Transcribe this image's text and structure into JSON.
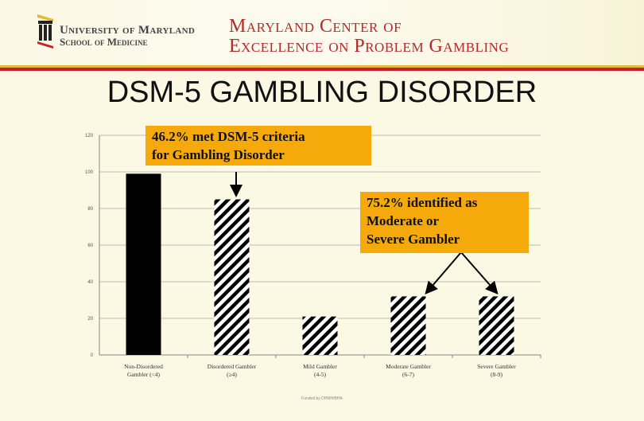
{
  "header": {
    "logo_line1": "University of Maryland",
    "logo_line2": "School of Medicine",
    "center_line1": "Maryland Center of",
    "center_line2": "Excellence on Problem Gambling"
  },
  "title": "DSM-5 GAMBLING DISORDER",
  "callouts": {
    "first": [
      "46.2% met DSM-5 criteria",
      "for Gambling  Disorder"
    ],
    "second": [
      "75.2% identified  as",
      "Moderate   or",
      "Severe Gambler"
    ]
  },
  "footer": "Funded by DHMH/BHA",
  "chart_data": {
    "type": "bar",
    "title": "",
    "xlabel": "",
    "ylabel": "",
    "ylim": [
      0,
      120
    ],
    "yticks": [
      0,
      20,
      40,
      60,
      80,
      100,
      120
    ],
    "categories": [
      [
        "Non-Disordered",
        "Gambler          (<4)"
      ],
      [
        "Disordered Gambler",
        "(≥4)"
      ],
      [
        "Mild Gambler",
        "(4-5)"
      ],
      [
        "Moderate Gambler",
        "(6-7)"
      ],
      [
        "Severe Gambler",
        "(8-9)"
      ]
    ],
    "values": [
      99,
      85,
      21,
      32,
      32
    ],
    "fills": [
      "solid",
      "hatched",
      "hatched",
      "hatched",
      "hatched"
    ],
    "colors": {
      "bar": "#000000",
      "callout": "#f5a90a"
    }
  }
}
